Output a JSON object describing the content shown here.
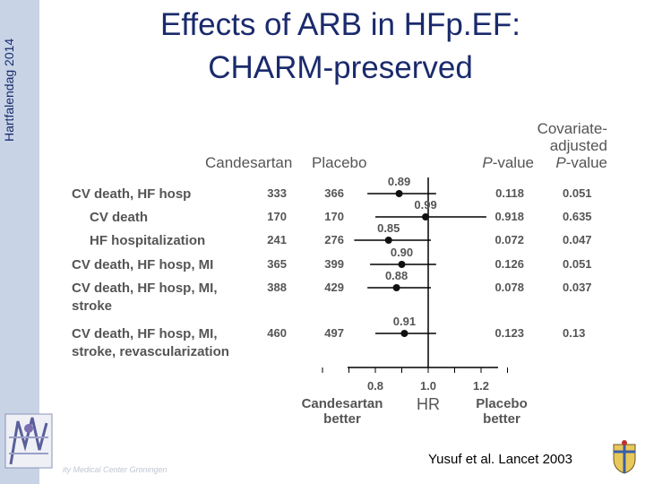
{
  "sidebar": {
    "label": "Hartfalendag 2014"
  },
  "title": {
    "line1": "Effects of ARB in HFp.EF:",
    "line2": "CHARM-preserved"
  },
  "chart_data": {
    "type": "forest",
    "column_headers": {
      "candesartan": "Candesartan",
      "placebo": "Placebo",
      "pvalue": "P-value",
      "adj_line1": "Covariate-",
      "adj_line2": "adjusted",
      "adj_line3": "P-value"
    },
    "rows": [
      {
        "label_lines": [
          "CV death, HF hosp"
        ],
        "indent": false,
        "candesartan": "333",
        "placebo": "366",
        "hr": 0.89,
        "hr_label": "0.89",
        "ci": [
          0.77,
          1.03
        ],
        "p": "0.118",
        "p_adj": "0.051"
      },
      {
        "label_lines": [
          "CV death"
        ],
        "indent": true,
        "candesartan": "170",
        "placebo": "170",
        "hr": 0.99,
        "hr_label": "0.99",
        "ci": [
          0.8,
          1.22
        ],
        "p": "0.918",
        "p_adj": "0.635"
      },
      {
        "label_lines": [
          "HF hospitalization"
        ],
        "indent": true,
        "candesartan": "241",
        "placebo": "276",
        "hr": 0.85,
        "hr_label": "0.85",
        "ci": [
          0.72,
          1.01
        ],
        "p": "0.072",
        "p_adj": "0.047"
      },
      {
        "label_lines": [
          "CV death, HF hosp, MI"
        ],
        "indent": false,
        "candesartan": "365",
        "placebo": "399",
        "hr": 0.9,
        "hr_label": "0.90",
        "ci": [
          0.78,
          1.03
        ],
        "p": "0.126",
        "p_adj": "0.051"
      },
      {
        "label_lines": [
          "CV death, HF hosp, MI,",
          "stroke"
        ],
        "indent": false,
        "candesartan": "388",
        "placebo": "429",
        "hr": 0.88,
        "hr_label": "0.88",
        "ci": [
          0.77,
          1.01
        ],
        "p": "0.078",
        "p_adj": "0.037"
      },
      {
        "label_lines": [
          "CV death, HF hosp, MI,",
          "stroke, revascularization"
        ],
        "indent": false,
        "candesartan": "460",
        "placebo": "497",
        "hr": 0.91,
        "hr_label": "0.91",
        "ci": [
          0.8,
          1.03
        ],
        "p": "0.123",
        "p_adj": "0.13"
      }
    ],
    "x_axis": {
      "label": "HR",
      "ticks": [
        0.8,
        1.0,
        1.2
      ],
      "tick_labels": [
        "0.8",
        "1.0",
        "1.2"
      ],
      "range": [
        0.6,
        1.3
      ],
      "reference": 1.0
    },
    "favours_left": [
      "Candesartan",
      "better"
    ],
    "favours_right": [
      "Placebo",
      "better"
    ]
  },
  "footer": {
    "institution": "ity Medical Center Groningen",
    "citation": "Yusuf et al. Lancet 2003"
  }
}
